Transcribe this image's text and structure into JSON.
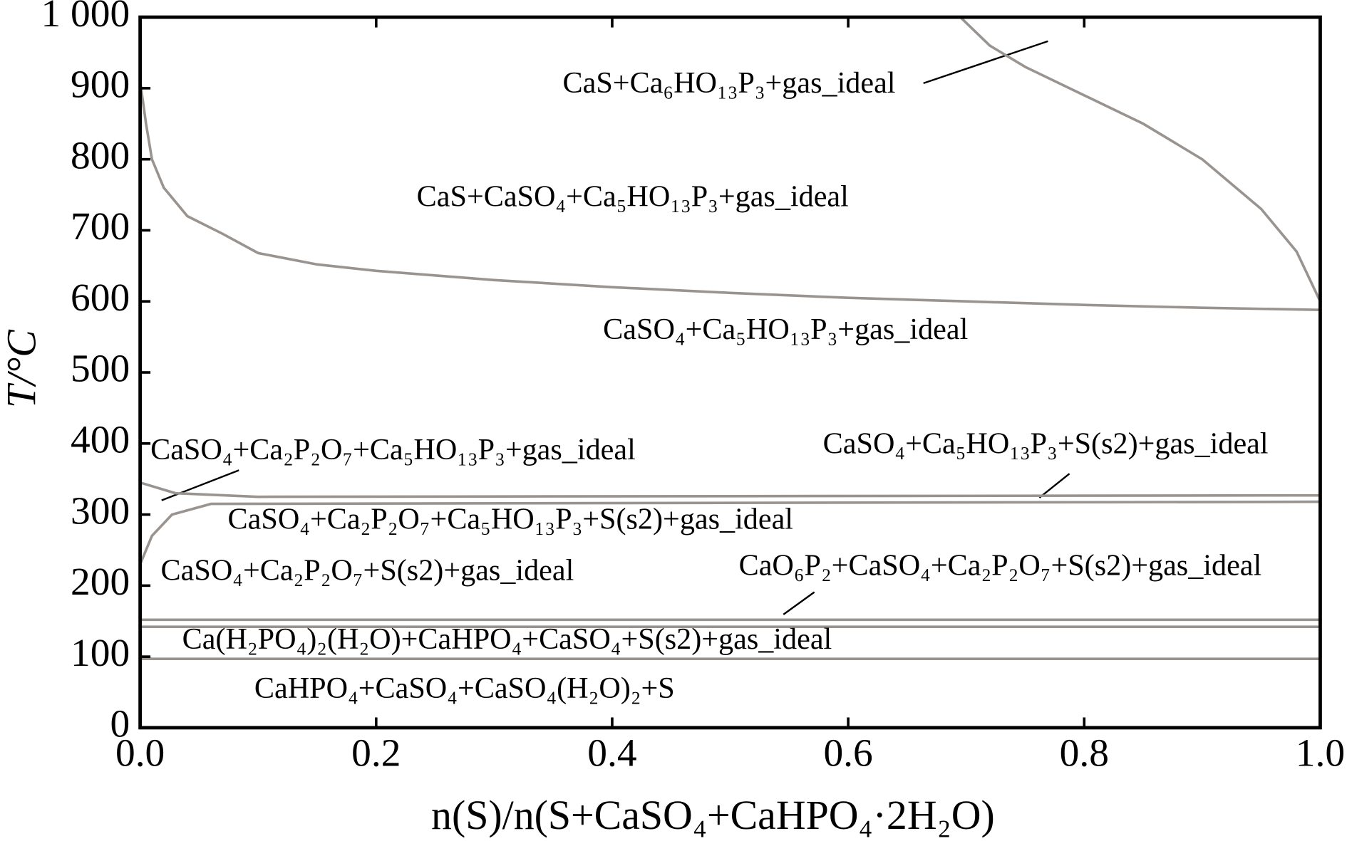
{
  "chart_data": {
    "type": "line",
    "x_label": "n(S)/n(S+CaSO₄+CaHPO₄·2H₂O)",
    "y_label": "T/°C",
    "xlim": [
      0,
      1
    ],
    "ylim": [
      0,
      1000
    ],
    "xticks": [
      {
        "value": 0,
        "label": "0.0"
      },
      0.2,
      0.4,
      0.6,
      0.8,
      {
        "value": 1,
        "label": "1.0"
      }
    ],
    "yticks": [
      0,
      100,
      200,
      300,
      400,
      500,
      600,
      700,
      800,
      900,
      {
        "value": 1000,
        "label": "1 000"
      }
    ],
    "line_color": "#9a9490",
    "series": [
      {
        "x": [
          0,
          0.005,
          0.01,
          0.02,
          0.04,
          0.07,
          0.1,
          0.15,
          0.2,
          0.3,
          0.4,
          0.5,
          0.6,
          0.7,
          0.8,
          0.9,
          1.0
        ],
        "values": [
          910,
          850,
          800,
          760,
          720,
          695,
          668,
          652,
          643,
          630,
          620,
          612,
          605,
          600,
          595,
          591,
          588
        ]
      },
      {
        "x": [
          0.695,
          0.72,
          0.75,
          0.8,
          0.85,
          0.9,
          0.95,
          0.98,
          1.0
        ],
        "values": [
          1000,
          960,
          930,
          890,
          850,
          800,
          730,
          670,
          600
        ]
      },
      {
        "x": [
          0,
          0.03,
          0.1,
          1.0
        ],
        "values": [
          345,
          330,
          325,
          327
        ]
      },
      {
        "x": [
          0,
          0.01,
          0.027,
          0.06,
          1.0
        ],
        "values": [
          230,
          270,
          300,
          315,
          318
        ]
      },
      {
        "x": [
          0,
          1.0
        ],
        "values": [
          152,
          152
        ]
      },
      {
        "x": [
          0,
          1.0
        ],
        "values": [
          142,
          142
        ]
      },
      {
        "x": [
          0,
          1.0
        ],
        "values": [
          97,
          97
        ]
      }
    ],
    "annotations": [
      {
        "text": "CaS+Ca₆HO₁₃P₃+gas_ideal"
      },
      {
        "text": "CaS+CaSO₄+Ca₅HO₁₃P₃+gas_ideal"
      },
      {
        "text": "CaSO₄+Ca₅HO₁₃P₃+gas_ideal"
      },
      {
        "text": "CaSO₄+Ca₂P₂O₇+Ca₅HO₁₃P₃+gas_ideal"
      },
      {
        "text": "CaSO₄+Ca₅HO₁₃P₃+S(s2)+gas_ideal"
      },
      {
        "text": "CaSO₄+Ca₂P₂O₇+Ca₅HO₁₃P₃+S(s2)+gas_ideal"
      },
      {
        "text": "CaSO₄+Ca₂P₂O₇+S(s2)+gas_ideal"
      },
      {
        "text": "CaO₆P₂+CaSO₄+Ca₂P₂O₇+S(s2)+gas_ideal"
      },
      {
        "text": "Ca(H₂PO₄)₂(H₂O)+CaHPO₄+CaSO₄+S(s2)+gas_ideal"
      },
      {
        "text": "CaHPO₄+CaSO₄+CaSO₄(H₂O)₂+S"
      }
    ]
  }
}
